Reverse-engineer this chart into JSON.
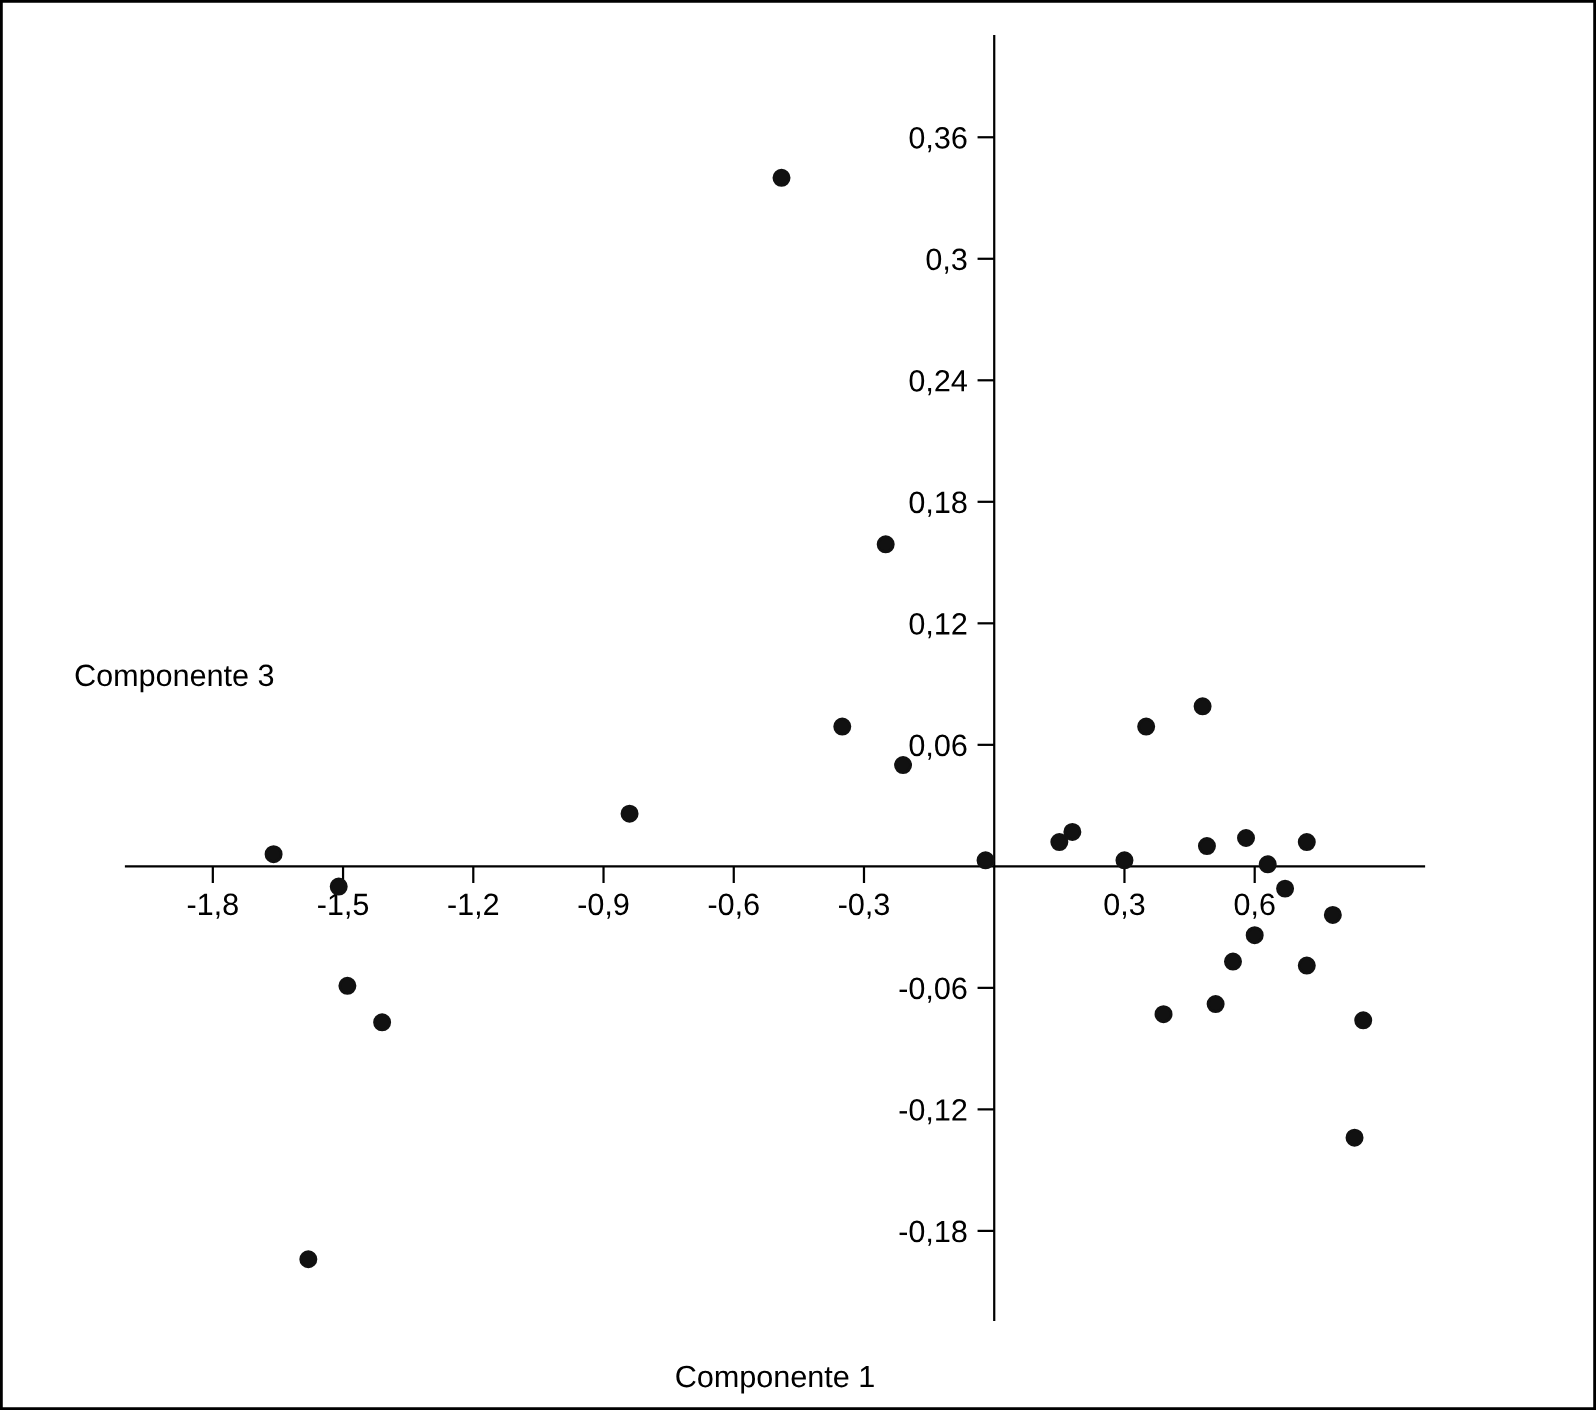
{
  "chart_data": {
    "type": "scatter",
    "xlabel": "Componente 1",
    "ylabel": "Componente 3",
    "x": [
      -1.66,
      -1.51,
      -1.49,
      -1.41,
      -1.58,
      -0.84,
      -0.49,
      -0.25,
      -0.35,
      -0.21,
      -0.02,
      0.15,
      0.18,
      0.3,
      0.35,
      0.48,
      0.49,
      0.58,
      0.63,
      0.72,
      0.67,
      0.78,
      0.6,
      0.55,
      0.72,
      0.39,
      0.51,
      0.85,
      0.83
    ],
    "values": [
      0.006,
      -0.01,
      -0.059,
      -0.077,
      -0.194,
      0.026,
      0.34,
      0.159,
      0.069,
      0.05,
      0.003,
      0.012,
      0.017,
      0.003,
      0.069,
      0.079,
      0.01,
      0.014,
      0.001,
      0.012,
      -0.011,
      -0.024,
      -0.034,
      -0.047,
      -0.049,
      -0.073,
      -0.068,
      -0.076,
      -0.134
    ],
    "color": "#111111",
    "marker": "circle",
    "grid": false,
    "xlim": [
      -2.0,
      0.99
    ],
    "ylim": [
      -0.224,
      0.41
    ],
    "xticks": [
      {
        "value": -1.8,
        "label": "-1,8"
      },
      {
        "value": -1.5,
        "label": "-1,5"
      },
      {
        "value": -1.2,
        "label": "-1,2"
      },
      {
        "value": -0.9,
        "label": "-0,9"
      },
      {
        "value": -0.6,
        "label": "-0,6"
      },
      {
        "value": -0.3,
        "label": "-0,3"
      },
      {
        "value": 0.3,
        "label": "0,3"
      },
      {
        "value": 0.6,
        "label": "0,6"
      }
    ],
    "yticks": [
      {
        "value": -0.18,
        "label": "-0,18"
      },
      {
        "value": -0.12,
        "label": "-0,12"
      },
      {
        "value": -0.06,
        "label": "-0,06"
      },
      {
        "value": 0.06,
        "label": "0,06"
      },
      {
        "value": 0.12,
        "label": "0,12"
      },
      {
        "value": 0.18,
        "label": "0,18"
      },
      {
        "value": 0.24,
        "label": "0,24"
      },
      {
        "value": 0.3,
        "label": "0,3"
      },
      {
        "value": 0.36,
        "label": "0,36"
      }
    ]
  }
}
